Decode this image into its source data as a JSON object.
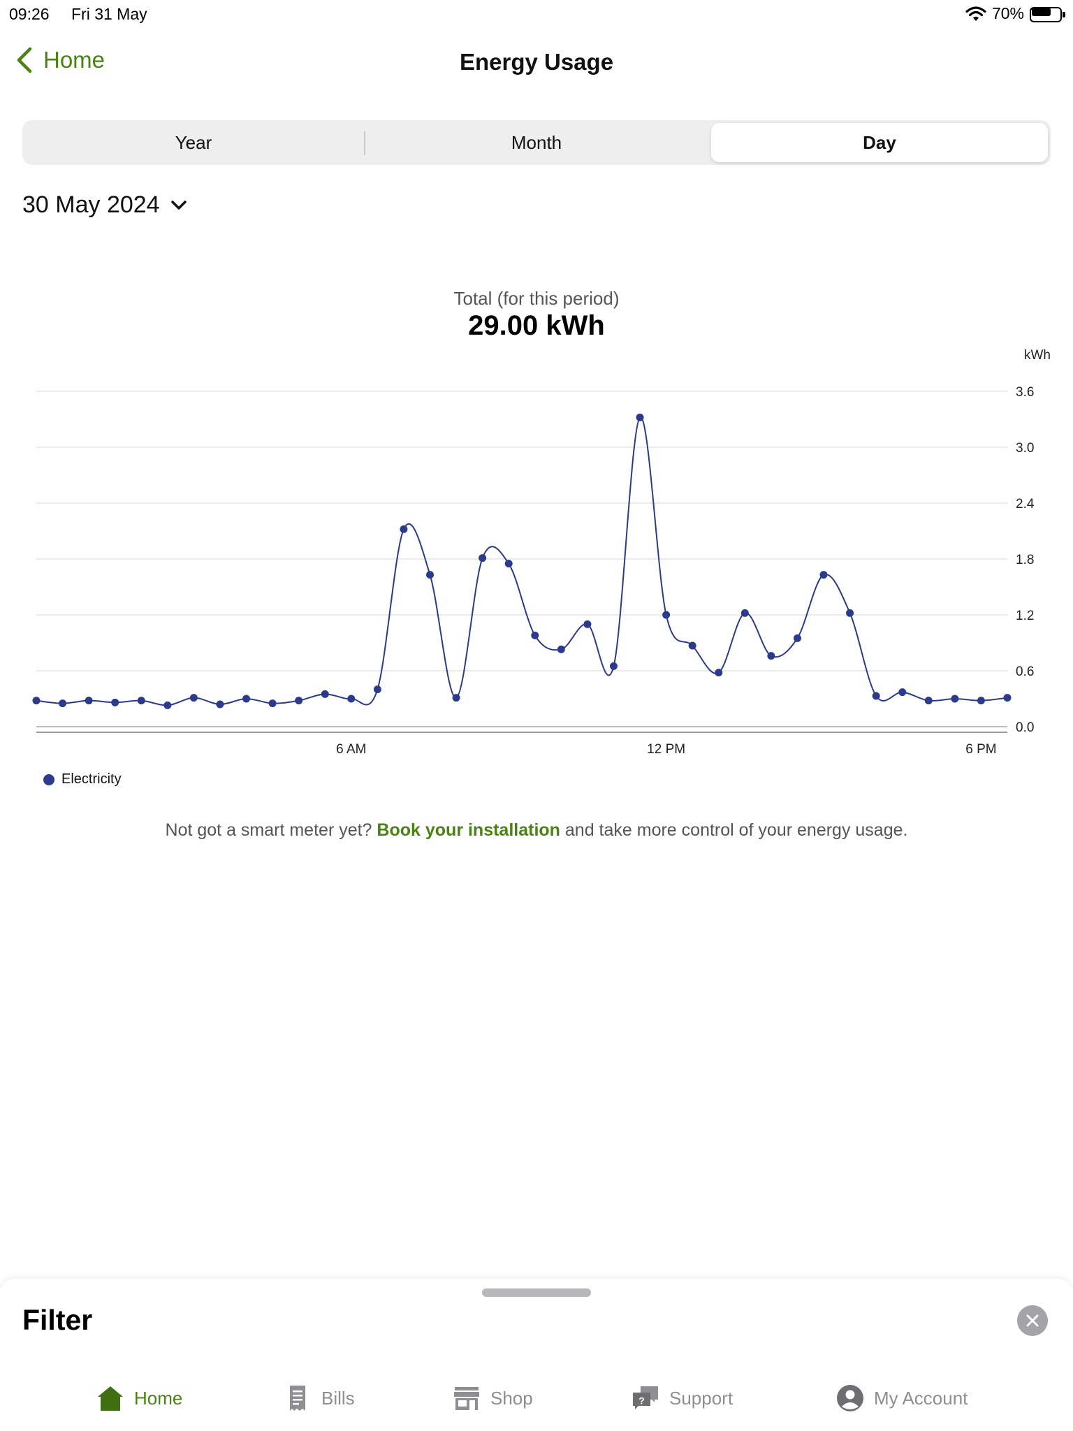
{
  "status_bar": {
    "time": "09:26",
    "date": "Fri 31 May",
    "battery": "70%",
    "battery_level": 0.7
  },
  "nav": {
    "back_label": "Home",
    "title": "Energy Usage"
  },
  "segments": [
    {
      "label": "Year",
      "active": false
    },
    {
      "label": "Month",
      "active": false
    },
    {
      "label": "Day",
      "active": true
    }
  ],
  "date_picker": {
    "label": "30 May 2024"
  },
  "total": {
    "label": "Total (for this period)",
    "value": "29.00 kWh"
  },
  "chart_data": {
    "type": "line",
    "y_unit_label": "kWh",
    "ylim": [
      0,
      3.6
    ],
    "yticks": [
      "3.6",
      "3.0",
      "2.4",
      "1.8",
      "1.2",
      "0.6",
      "0.0"
    ],
    "xlim": [
      0,
      18.5
    ],
    "xticks": [
      {
        "value": 6,
        "label": "6 AM"
      },
      {
        "value": 12,
        "label": "12 PM"
      },
      {
        "value": 18,
        "label": "6 PM"
      }
    ],
    "grid": true,
    "legend": "bottom-left",
    "series": [
      {
        "name": "Electricity",
        "color": "#2b3a8a",
        "x": [
          0,
          0.5,
          1,
          1.5,
          2,
          2.5,
          3,
          3.5,
          4,
          4.5,
          5,
          5.5,
          6,
          6.5,
          7,
          7.5,
          8,
          8.5,
          9,
          9.5,
          10,
          10.5,
          11,
          11.5,
          12,
          12.5,
          13,
          13.5,
          14,
          14.5,
          15,
          15.5,
          16,
          16.5,
          17,
          17.5,
          18,
          18.5
        ],
        "values": [
          0.28,
          0.25,
          0.28,
          0.26,
          0.28,
          0.23,
          0.31,
          0.24,
          0.3,
          0.25,
          0.28,
          0.35,
          0.3,
          0.4,
          2.12,
          1.63,
          0.31,
          1.81,
          1.75,
          0.98,
          0.83,
          1.1,
          0.65,
          3.32,
          1.2,
          0.87,
          0.58,
          1.22,
          0.76,
          0.95,
          1.63,
          1.22,
          0.33,
          0.37,
          0.28,
          0.3,
          0.28,
          0.31
        ]
      }
    ]
  },
  "legend": {
    "label": "Electricity"
  },
  "promo": {
    "prefix": "Not got a smart meter yet? ",
    "link": "Book your installation",
    "suffix": " and take more control of your energy usage."
  },
  "sheet": {
    "title": "Filter"
  },
  "tabs": [
    {
      "label": "Home",
      "icon": "home-icon",
      "active": true
    },
    {
      "label": "Bills",
      "icon": "receipt-icon",
      "active": false
    },
    {
      "label": "Shop",
      "icon": "store-icon",
      "active": false
    },
    {
      "label": "Support",
      "icon": "chat-help-icon",
      "active": false
    },
    {
      "label": "My Account",
      "icon": "account-icon",
      "active": false
    }
  ]
}
